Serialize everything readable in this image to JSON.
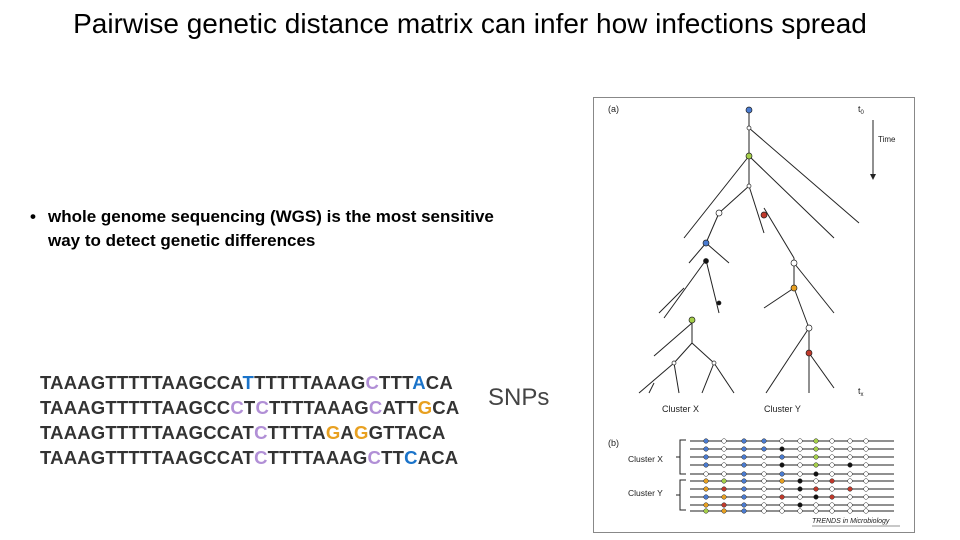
{
  "slide": {
    "title": "Pairwise genetic distance matrix can infer how infections spread",
    "bullet_marker": "•",
    "bullet": "whole genome sequencing (WGS) is the most sensitive way to detect genetic differences",
    "snps_label": "SNPs"
  },
  "sequences": [
    [
      "TAAAGTTTTTAAGCCA",
      "T",
      "T",
      "TTTTAAAG",
      "C",
      "T",
      "T",
      "T",
      "A",
      "CA"
    ],
    [
      "TAAAGTTTTTAAGCC",
      "C",
      "T",
      "C",
      "TTTTAAAG",
      "C",
      "A",
      "T",
      "T",
      "G",
      "CA"
    ],
    [
      "TAAAGTTTTTAAGCCA",
      "T",
      "C",
      "TTTTA",
      "G",
      "A",
      "G",
      "G",
      "T",
      "T",
      "ACA"
    ],
    [
      "TAAAGTTTTTAAGCCA",
      "T",
      "C",
      "TTTTAAAG",
      "C",
      "T",
      "T",
      "C",
      "A",
      "CA"
    ]
  ],
  "sequence_colors": [
    [
      "#333333",
      "#1a73c9",
      "#333333",
      "#333333",
      "#b18fd6",
      "#333333",
      "#333333",
      "#333333",
      "#1a73c9",
      "#333333"
    ],
    [
      "#333333",
      "#b18fd6",
      "#333333",
      "#b18fd6",
      "#333333",
      "#b18fd6",
      "#333333",
      "#333333",
      "#333333",
      "#e8a020",
      "#333333"
    ],
    [
      "#333333",
      "#333333",
      "#b18fd6",
      "#333333",
      "#e8a020",
      "#333333",
      "#e8a020",
      "#333333",
      "#333333",
      "#333333",
      "#333333"
    ],
    [
      "#333333",
      "#333333",
      "#b18fd6",
      "#333333",
      "#b18fd6",
      "#333333",
      "#333333",
      "#1a73c9",
      "#333333",
      "#333333"
    ]
  ],
  "figure": {
    "panel_a": "(a)",
    "panel_b": "(b)",
    "t0": "t",
    "t0_sub": "0",
    "tx": "t",
    "tx_sub": "x",
    "time_label": "Time",
    "cluster_x": "Cluster X",
    "cluster_y": "Cluster Y",
    "cluster_x_b": "Cluster X",
    "cluster_y_b": "Cluster Y",
    "credit": "TRENDS in Microbiology"
  },
  "colors": {
    "node_blue": "#4a7bd0",
    "node_green": "#a6d04a",
    "node_red": "#c0392b",
    "node_orange": "#e8a020",
    "node_black": "#111111"
  }
}
